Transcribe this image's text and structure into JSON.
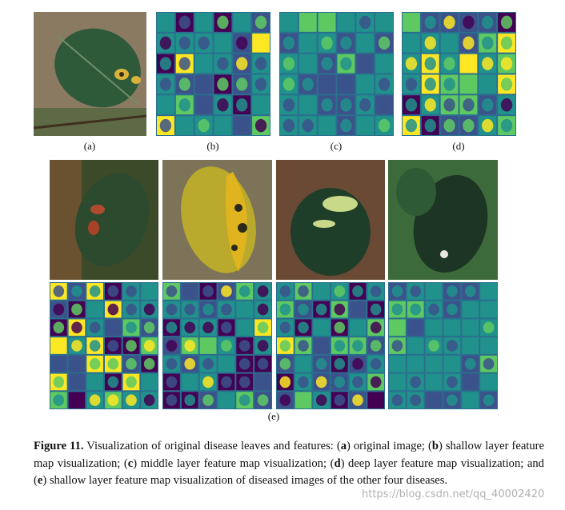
{
  "labels": [
    "(a)",
    "(b)",
    "(c)",
    "(d)",
    "(e)"
  ],
  "caption": [
    {
      "text": "Figure 11.",
      "bold": true
    },
    {
      "text": " Visualization of original disease leaves and features: (",
      "bold": false
    },
    {
      "text": "a",
      "bold": true
    },
    {
      "text": ") original image; (",
      "bold": false
    },
    {
      "text": "b",
      "bold": true
    },
    {
      "text": ") shallow layer feature map visualization; (",
      "bold": false
    },
    {
      "text": "c",
      "bold": true
    },
    {
      "text": ") middle layer feature map visualization; (",
      "bold": false
    },
    {
      "text": "d",
      "bold": true
    },
    {
      "text": ") deep layer feature map visualization; and (",
      "bold": false
    },
    {
      "text": "e",
      "bold": true
    },
    {
      "text": ") shallow layer feature map visualization of diseased images of the other four diseases.",
      "bold": false
    }
  ],
  "watermark": "https://blog.csdn.net/qq_40002420"
}
